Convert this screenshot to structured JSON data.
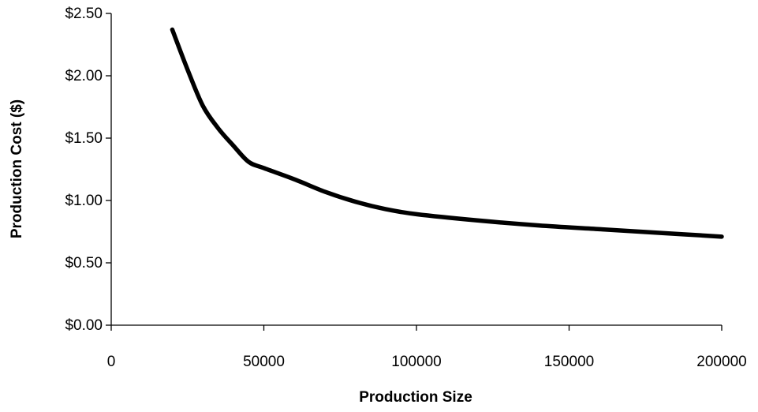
{
  "chart_data": {
    "type": "line",
    "title": "",
    "xlabel": "Production Size",
    "ylabel": "Production Cost ($)",
    "xlim": [
      0,
      200000
    ],
    "ylim": [
      0,
      2.5
    ],
    "x_ticks": [
      0,
      50000,
      100000,
      150000,
      200000
    ],
    "x_tick_labels": [
      "0",
      "50000",
      "100000",
      "150000",
      "200000"
    ],
    "y_ticks": [
      0,
      0.5,
      1.0,
      1.5,
      2.0,
      2.5
    ],
    "y_tick_labels": [
      "$0.00",
      "$0.50",
      "$1.00",
      "$1.50",
      "$2.00",
      "$2.50"
    ],
    "grid": false,
    "legend": "none",
    "line_color": "#000000",
    "series": [
      {
        "x": [
          20000,
          25000,
          30000,
          35000,
          40000,
          45000,
          50000,
          60000,
          70000,
          80000,
          90000,
          100000,
          120000,
          140000,
          160000,
          180000,
          200000
        ],
        "y": [
          2.37,
          2.05,
          1.76,
          1.58,
          1.44,
          1.31,
          1.26,
          1.17,
          1.07,
          0.99,
          0.93,
          0.89,
          0.84,
          0.8,
          0.77,
          0.74,
          0.71
        ]
      }
    ]
  }
}
